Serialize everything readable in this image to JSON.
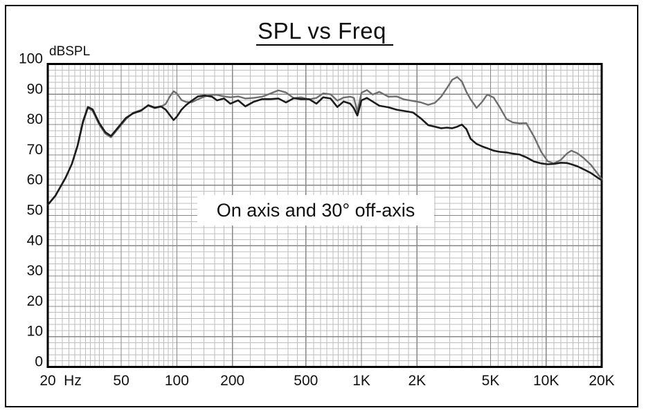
{
  "chart_data": {
    "type": "line",
    "title": "SPL vs Freq",
    "y_axis_label": "dBSPL",
    "x_axis_unit": "Hz",
    "annotation": "On axis and 30° off-axis",
    "x_scale": "log",
    "xlim": [
      20,
      20000
    ],
    "ylim": [
      0,
      100
    ],
    "grid": {
      "y_minor_step_db": 2,
      "y_major_step_db": 10,
      "x_minor_segments": [
        [
          20,
          40,
          2
        ],
        [
          40,
          100,
          5
        ],
        [
          100,
          200,
          20
        ],
        [
          200,
          1000,
          50
        ],
        [
          1000,
          2000,
          200
        ],
        [
          2000,
          10000,
          500
        ],
        [
          10000,
          20000,
          1000
        ]
      ],
      "x_major_lines_hz": [
        50,
        100,
        200,
        500,
        1000,
        2000,
        5000,
        10000
      ]
    },
    "x_tick_labels": [
      {
        "f": 20,
        "label": "20"
      },
      {
        "f": 50,
        "label": "50"
      },
      {
        "f": 100,
        "label": "100"
      },
      {
        "f": 200,
        "label": "200"
      },
      {
        "f": 500,
        "label": "500"
      },
      {
        "f": 1000,
        "label": "1K"
      },
      {
        "f": 2000,
        "label": "2K"
      },
      {
        "f": 5000,
        "label": "5K"
      },
      {
        "f": 10000,
        "label": "10K"
      },
      {
        "f": 20000,
        "label": "20K"
      }
    ],
    "y_tick_labels": [
      "100",
      "90",
      "80",
      "70",
      "60",
      "50",
      "40",
      "30",
      "20",
      "10",
      "0"
    ],
    "colors": {
      "on_axis": "#1c1c1c",
      "off_axis": "#6e6e6e",
      "grid_minor": "#bdbdbd",
      "grid_major": "#878787",
      "frame": "#000000"
    },
    "frequencies_hz": [
      20,
      22,
      25,
      27,
      29,
      31,
      33,
      35,
      38,
      41,
      44,
      48,
      53,
      58,
      64,
      70,
      76,
      82,
      87,
      92,
      96,
      100,
      106,
      112,
      120,
      130,
      142,
      155,
      165,
      180,
      195,
      215,
      235,
      260,
      290,
      320,
      355,
      390,
      430,
      470,
      520,
      570,
      620,
      680,
      740,
      800,
      870,
      910,
      950,
      1000,
      1070,
      1150,
      1250,
      1400,
      1550,
      1700,
      1900,
      2100,
      2300,
      2500,
      2700,
      2900,
      3100,
      3300,
      3500,
      3700,
      3900,
      4200,
      4500,
      4800,
      5200,
      5600,
      6100,
      6600,
      7200,
      7800,
      8600,
      9400,
      10200,
      11000,
      12000,
      13000,
      13700,
      14800,
      16000,
      17500,
      19000,
      20000
    ],
    "series": [
      {
        "name": "on-axis (dark)",
        "color_key": "on_axis",
        "stroke_width": 2.6,
        "spl_db": [
          53.5,
          56.5,
          62.5,
          67,
          73,
          81,
          85.8,
          85,
          80.5,
          77.5,
          76.2,
          79,
          82.2,
          83.7,
          84.6,
          86.4,
          85.6,
          86,
          84.9,
          83,
          81.5,
          82.6,
          84.9,
          86.4,
          87.8,
          89.3,
          89.6,
          89.2,
          88,
          88.6,
          86.9,
          88,
          86,
          87.5,
          88.4,
          88.4,
          88.6,
          87.3,
          88.7,
          88.4,
          88.4,
          86.9,
          89,
          88.6,
          85.8,
          87.6,
          86.9,
          85.4,
          83,
          88,
          88.8,
          87.6,
          86.2,
          85.7,
          84.9,
          84.5,
          84,
          82,
          79.8,
          79.3,
          78.8,
          79,
          78.8,
          79.3,
          80,
          78.5,
          75.3,
          73.6,
          72.8,
          72.2,
          71.4,
          71,
          70.8,
          70.4,
          70.1,
          69.2,
          67.8,
          67.2,
          66.9,
          67,
          67.4,
          67.3,
          66.9,
          66.2,
          65.2,
          64,
          62.5,
          61.6
        ]
      },
      {
        "name": "30° off-axis (gray)",
        "color_key": "off_axis",
        "stroke_width": 2.4,
        "spl_db": [
          53.5,
          56.5,
          62.5,
          67,
          73,
          80.5,
          85.5,
          84.5,
          80,
          77,
          75.8,
          78.6,
          81.8,
          83.9,
          84.8,
          86.2,
          85.4,
          85.9,
          86.8,
          89.4,
          91,
          90.3,
          88.1,
          87.5,
          87.3,
          88.3,
          89.3,
          89.8,
          89.8,
          89.3,
          89,
          89.3,
          88.6,
          88.8,
          89.2,
          90.2,
          91.3,
          90.6,
          88.7,
          89,
          88.3,
          88.8,
          90.3,
          90,
          87.9,
          88.9,
          89.2,
          88.8,
          84.3,
          90.5,
          91.4,
          89.9,
          90.8,
          89.2,
          89.3,
          88.3,
          87.8,
          87.3,
          86.5,
          87.2,
          89.2,
          92,
          94.8,
          95.7,
          94.2,
          90.8,
          88.3,
          85.5,
          87.5,
          89.9,
          88.9,
          85.8,
          81.8,
          80.7,
          80.4,
          80.5,
          76,
          71,
          67.9,
          67.2,
          68.3,
          70.5,
          71.4,
          70.5,
          68.9,
          66.7,
          63.8,
          62
        ]
      }
    ]
  }
}
